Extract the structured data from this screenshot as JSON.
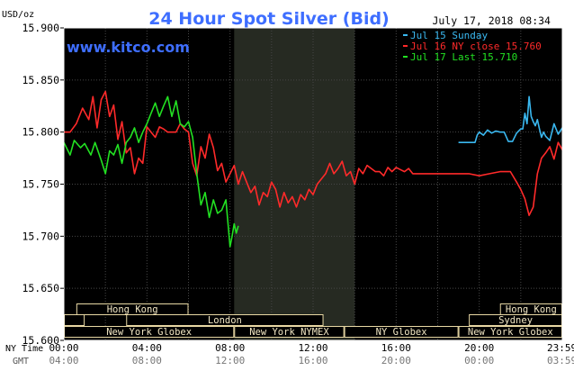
{
  "chart_data": {
    "type": "line",
    "title": "24 Hour Spot Silver (Bid)",
    "date_label": "July 17, 2018 08:34",
    "watermark": "www.kitco.com",
    "ylabel": "USD/oz",
    "ylim": [
      15.6,
      15.9
    ],
    "y_ticks": [
      "15.900",
      "15.850",
      "15.800",
      "15.750",
      "15.700",
      "15.650",
      "15.600"
    ],
    "xlim": [
      0,
      24
    ],
    "row_labels": {
      "ny": "NY Time",
      "gmt": "GMT"
    },
    "x_ticks_ny": [
      {
        "h": 0,
        "label": "00:00"
      },
      {
        "h": 4,
        "label": "04:00"
      },
      {
        "h": 8,
        "label": "08:00"
      },
      {
        "h": 12,
        "label": "12:00"
      },
      {
        "h": 16,
        "label": "16:00"
      },
      {
        "h": 20,
        "label": "20:00"
      },
      {
        "h": 23.983,
        "label": "23:59"
      }
    ],
    "x_ticks_gmt": [
      {
        "h": 0,
        "label": "04:00"
      },
      {
        "h": 4,
        "label": "08:00"
      },
      {
        "h": 8,
        "label": "12:00"
      },
      {
        "h": 12,
        "label": "16:00"
      },
      {
        "h": 16,
        "label": "20:00"
      },
      {
        "h": 20,
        "label": "00:00"
      },
      {
        "h": 23.983,
        "label": "03:59"
      }
    ],
    "shaded_band": [
      8.2,
      14.0
    ],
    "grid": true,
    "legend_position": "top-right",
    "colors": {
      "background": "#000000",
      "plot_border": "#ffffff",
      "title": "#3e6eff",
      "grid": "#464646",
      "shade": "#262a22",
      "session_fill": "#000000",
      "session_border": "#e8d8a4",
      "session_text": "#f2e7c4"
    },
    "sessions": [
      {
        "label": "Hong Kong",
        "start": 0.6,
        "end": 6.0,
        "row": 0
      },
      {
        "label": "London",
        "start": 0.0,
        "end": 1.0,
        "row": 1
      },
      {
        "label": "London",
        "start": 3.0,
        "end": 12.5,
        "row": 1
      },
      {
        "label": "New York Globex",
        "start": 0.0,
        "end": 8.2,
        "row": 2
      },
      {
        "label": "New York NYMEX",
        "start": 8.2,
        "end": 13.5,
        "row": 2
      },
      {
        "label": "NY Globex",
        "start": 13.5,
        "end": 19.0,
        "row": 2
      },
      {
        "label": "Hong Kong",
        "start": 21.0,
        "end": 24.0,
        "row": 0
      },
      {
        "label": "Sydney",
        "start": 19.5,
        "end": 24.0,
        "row": 1
      },
      {
        "label": "New York Globex",
        "start": 19.0,
        "end": 24.0,
        "row": 2
      }
    ],
    "series": [
      {
        "name": "Jul 15 Sunday",
        "color": "#3ab8f0",
        "x": [
          19.0,
          19.8,
          19.9,
          20.0,
          20.2,
          20.4,
          20.6,
          20.8,
          21.0,
          21.2,
          21.4,
          21.6,
          21.8,
          22.0,
          22.1,
          22.2,
          22.3,
          22.4,
          22.5,
          22.6,
          22.7,
          22.8,
          22.9,
          23.0,
          23.1,
          23.2,
          23.4,
          23.6,
          23.8,
          24.0
        ],
        "y": [
          15.79,
          15.79,
          15.797,
          15.8,
          15.797,
          15.802,
          15.799,
          15.801,
          15.8,
          15.8,
          15.791,
          15.791,
          15.799,
          15.803,
          15.803,
          15.818,
          15.808,
          15.834,
          15.815,
          15.81,
          15.806,
          15.812,
          15.803,
          15.795,
          15.8,
          15.796,
          15.792,
          15.808,
          15.798,
          15.804
        ]
      },
      {
        "name": "Jul 16 NY close 15.760",
        "color": "#ff2a2a",
        "x": [
          0,
          0.3,
          0.6,
          0.9,
          1.2,
          1.4,
          1.6,
          1.8,
          2.0,
          2.2,
          2.4,
          2.6,
          2.8,
          3.0,
          3.2,
          3.4,
          3.6,
          3.8,
          4.0,
          4.2,
          4.4,
          4.6,
          4.8,
          5.0,
          5.2,
          5.4,
          5.6,
          5.8,
          6.0,
          6.2,
          6.4,
          6.6,
          6.8,
          7.0,
          7.2,
          7.4,
          7.6,
          7.8,
          8.0,
          8.2,
          8.4,
          8.6,
          8.8,
          9.0,
          9.2,
          9.4,
          9.6,
          9.8,
          10.0,
          10.2,
          10.4,
          10.6,
          10.8,
          11.0,
          11.2,
          11.4,
          11.6,
          11.8,
          12.0,
          12.2,
          12.4,
          12.6,
          12.8,
          13.0,
          13.2,
          13.4,
          13.6,
          13.8,
          14.0,
          14.2,
          14.4,
          14.6,
          14.8,
          15.0,
          15.2,
          15.4,
          15.6,
          15.8,
          16.0,
          16.2,
          16.4,
          16.6,
          16.8,
          17.0,
          17.5,
          18.0,
          18.5,
          19.0,
          19.5,
          20.0,
          20.5,
          21.0,
          21.5,
          21.8,
          22.0,
          22.2,
          22.4,
          22.6,
          22.8,
          23.0,
          23.2,
          23.4,
          23.6,
          23.8,
          24.0
        ],
        "y": [
          15.8,
          15.8,
          15.808,
          15.823,
          15.812,
          15.834,
          15.804,
          15.831,
          15.839,
          15.815,
          15.826,
          15.793,
          15.81,
          15.78,
          15.785,
          15.76,
          15.775,
          15.77,
          15.805,
          15.8,
          15.795,
          15.805,
          15.803,
          15.8,
          15.8,
          15.8,
          15.808,
          15.803,
          15.8,
          15.77,
          15.758,
          15.786,
          15.775,
          15.798,
          15.785,
          15.763,
          15.77,
          15.752,
          15.76,
          15.768,
          15.75,
          15.762,
          15.752,
          15.742,
          15.748,
          15.73,
          15.742,
          15.738,
          15.752,
          15.745,
          15.728,
          15.742,
          15.732,
          15.738,
          15.728,
          15.74,
          15.735,
          15.745,
          15.74,
          15.75,
          15.755,
          15.76,
          15.77,
          15.76,
          15.765,
          15.772,
          15.758,
          15.762,
          15.75,
          15.765,
          15.76,
          15.768,
          15.765,
          15.762,
          15.762,
          15.758,
          15.766,
          15.762,
          15.766,
          15.764,
          15.762,
          15.765,
          15.76,
          15.76,
          15.76,
          15.76,
          15.76,
          15.76,
          15.76,
          15.758,
          15.76,
          15.762,
          15.762,
          15.752,
          15.745,
          15.736,
          15.72,
          15.728,
          15.76,
          15.775,
          15.78,
          15.786,
          15.774,
          15.79,
          15.783
        ]
      },
      {
        "name": "Jul 17 Last 15.710",
        "color": "#22e022",
        "x": [
          0,
          0.3,
          0.5,
          0.8,
          1.0,
          1.3,
          1.5,
          1.8,
          2.0,
          2.2,
          2.4,
          2.6,
          2.8,
          3.0,
          3.2,
          3.4,
          3.6,
          3.8,
          4.0,
          4.2,
          4.4,
          4.6,
          4.8,
          5.0,
          5.2,
          5.4,
          5.6,
          5.8,
          6.0,
          6.2,
          6.4,
          6.6,
          6.8,
          7.0,
          7.2,
          7.4,
          7.6,
          7.8,
          8.0,
          8.1,
          8.2,
          8.3,
          8.4
        ],
        "y": [
          15.79,
          15.778,
          15.792,
          15.785,
          15.789,
          15.778,
          15.79,
          15.773,
          15.76,
          15.782,
          15.778,
          15.788,
          15.77,
          15.79,
          15.795,
          15.804,
          15.79,
          15.8,
          15.808,
          15.818,
          15.828,
          15.815,
          15.825,
          15.834,
          15.815,
          15.83,
          15.808,
          15.805,
          15.81,
          15.795,
          15.76,
          15.73,
          15.742,
          15.718,
          15.735,
          15.722,
          15.725,
          15.735,
          15.69,
          15.7,
          15.712,
          15.703,
          15.71
        ]
      }
    ]
  }
}
